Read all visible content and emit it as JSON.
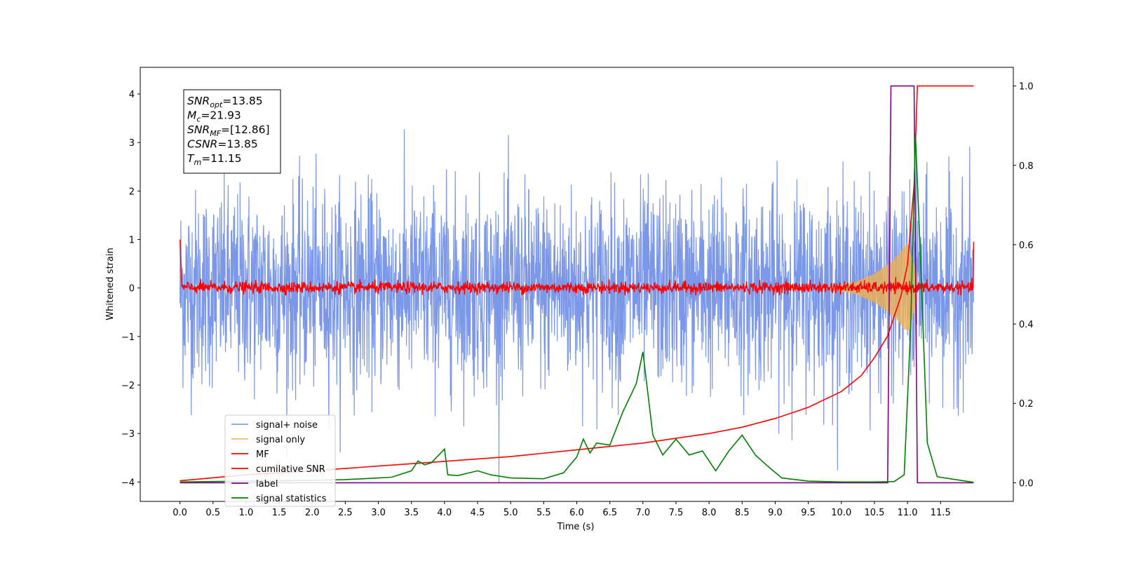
{
  "chart_data": {
    "type": "line",
    "title": "",
    "xlabel": "Time (s)",
    "ylabel": "Whitened strain",
    "xlim": [
      -0.6,
      12.6
    ],
    "ylim": [
      -4.4,
      4.55
    ],
    "y2lim": [
      -0.047,
      1.047
    ],
    "xticks": [
      0.0,
      0.5,
      1.0,
      1.5,
      2.0,
      2.5,
      3.0,
      3.5,
      4.0,
      4.5,
      5.0,
      5.5,
      6.0,
      6.5,
      7.0,
      7.5,
      8.0,
      8.5,
      9.0,
      9.5,
      10.0,
      10.5,
      11.0,
      11.5
    ],
    "xtick_labels": [
      "0.0",
      "0.5",
      "1.0",
      "1.5",
      "2.0",
      "2.5",
      "3.0",
      "3.5",
      "4.0",
      "4.5",
      "5.0",
      "5.5",
      "6.0",
      "6.5",
      "7.0",
      "7.5",
      "8.0",
      "8.5",
      "9.0",
      "9.5",
      "10.0",
      "10.5",
      "11.0",
      "11.5"
    ],
    "yticks": [
      -4,
      -3,
      -2,
      -1,
      0,
      1,
      2,
      3,
      4
    ],
    "ytick_labels": [
      "−4",
      "−3",
      "−2",
      "−1",
      "0",
      "1",
      "2",
      "3",
      "4"
    ],
    "y2ticks": [
      0.0,
      0.2,
      0.4,
      0.6,
      0.8,
      1.0
    ],
    "y2tick_labels": [
      "0.0",
      "0.2",
      "0.4",
      "0.6",
      "0.8",
      "1.0"
    ],
    "legend_position": "lower-left",
    "grid": false,
    "annotation": {
      "lines": [
        {
          "var": "SNR",
          "sub": "opt",
          "value": "=13.85"
        },
        {
          "var": "M",
          "sub": "c",
          "value": "=21.93"
        },
        {
          "var": "SNR",
          "sub": "MF",
          "value": "=[12.86]"
        },
        {
          "var": "CSNR",
          "sub": "",
          "value": "=13.85"
        },
        {
          "var": "T",
          "sub": "m",
          "value": "=11.15"
        }
      ]
    },
    "series": [
      {
        "name": "signal+ noise",
        "color": "#6f8ee6",
        "axis": "left",
        "note": "whitened noisy strain, approx. ±1 envelope with peaks to about 4.2",
        "envelope": {
          "x": [
            0.0,
            12.0
          ],
          "typical_abs": 1.0,
          "max_abs": 4.2
        }
      },
      {
        "name": "signal only",
        "color": "#f0b050",
        "axis": "left",
        "envelope": {
          "x": [
            9.8,
            10.2,
            10.5,
            10.8,
            11.0,
            11.15
          ],
          "amp": [
            0.02,
            0.12,
            0.3,
            0.6,
            0.95,
            0.3
          ]
        }
      },
      {
        "name": "MF",
        "color": "#ff0000",
        "axis": "left",
        "note": "matched filter output, near 0 with small noise, spikes to about 1 at both ends",
        "key_points": {
          "x": [
            0.0,
            0.02,
            12.0,
            12.0
          ],
          "y": [
            1.0,
            0.05,
            0.05,
            0.95
          ]
        }
      },
      {
        "name": "cumilative SNR",
        "color": "#ff0000",
        "axis": "right",
        "x": [
          0.0,
          1.0,
          2.0,
          3.0,
          4.0,
          5.0,
          6.0,
          7.0,
          8.0,
          8.5,
          9.0,
          9.5,
          10.0,
          10.3,
          10.5,
          10.7,
          10.9,
          11.0,
          11.1,
          11.15,
          11.3,
          11.5,
          12.0
        ],
        "y": [
          0.005,
          0.02,
          0.03,
          0.042,
          0.054,
          0.066,
          0.083,
          0.1,
          0.124,
          0.14,
          0.162,
          0.19,
          0.23,
          0.27,
          0.315,
          0.37,
          0.47,
          0.55,
          0.75,
          1.0,
          1.0,
          1.0,
          1.0
        ]
      },
      {
        "name": "label",
        "color": "#800080",
        "axis": "right",
        "x": [
          0.0,
          10.7,
          10.75,
          11.1,
          11.15,
          12.0
        ],
        "y": [
          0.0,
          0.0,
          1.0,
          1.0,
          0.0,
          0.0
        ]
      },
      {
        "name": "signal statistics",
        "color": "#008000",
        "axis": "right",
        "x": [
          0.0,
          1.0,
          2.0,
          2.5,
          3.0,
          3.2,
          3.5,
          3.6,
          3.7,
          3.8,
          4.0,
          4.05,
          4.2,
          4.5,
          4.7,
          5.0,
          5.5,
          5.8,
          6.0,
          6.1,
          6.2,
          6.3,
          6.5,
          6.7,
          6.9,
          7.0,
          7.15,
          7.3,
          7.5,
          7.7,
          7.9,
          8.1,
          8.3,
          8.5,
          8.7,
          8.9,
          9.1,
          9.5,
          10.0,
          10.5,
          10.8,
          10.95,
          11.05,
          11.12,
          11.2,
          11.3,
          11.45,
          12.0
        ],
        "y": [
          0.002,
          0.004,
          0.006,
          0.008,
          0.012,
          0.014,
          0.03,
          0.055,
          0.045,
          0.05,
          0.085,
          0.02,
          0.018,
          0.03,
          0.02,
          0.012,
          0.01,
          0.025,
          0.065,
          0.11,
          0.075,
          0.1,
          0.095,
          0.18,
          0.25,
          0.33,
          0.12,
          0.07,
          0.11,
          0.07,
          0.08,
          0.03,
          0.08,
          0.12,
          0.07,
          0.04,
          0.012,
          0.004,
          0.002,
          0.002,
          0.003,
          0.02,
          0.4,
          0.88,
          0.55,
          0.1,
          0.015,
          0.001
        ]
      }
    ]
  }
}
